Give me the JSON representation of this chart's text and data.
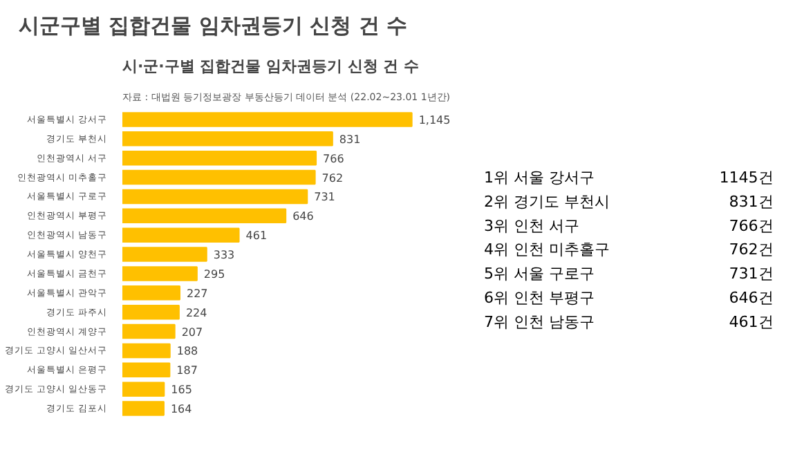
{
  "chart_data": [
    {
      "type": "bar",
      "orientation": "horizontal",
      "title": "시군구별 집합건물 임차권등기 신청 건 수",
      "subtitle": "시·군·구별 집합건물 임차권등기 신청 건 수",
      "annotations": [
        "자료 : 대법원 등기정보광장 부동산등기 데이터 분석 (22.02~23.01 1년간)"
      ],
      "categories": [
        "서울특별시 강서구",
        "경기도 부천시",
        "인천광역시 서구",
        "인천광역시 미추홀구",
        "서울특별시 구로구",
        "인천광역시 부평구",
        "인천광역시 남동구",
        "서울특별시 양천구",
        "서울특별시 금천구",
        "서울특별시 관악구",
        "경기도 파주시",
        "인천광역시 계양구",
        "경기도 고양시 일산서구",
        "서울특별시 은평구",
        "경기도 고양시 일산동구",
        "경기도 김포시"
      ],
      "values": [
        1145,
        831,
        766,
        762,
        731,
        646,
        461,
        333,
        295,
        227,
        224,
        207,
        188,
        187,
        165,
        164
      ],
      "value_labels": [
        "1,145",
        "831",
        "766",
        "762",
        "731",
        "646",
        "461",
        "333",
        "295",
        "227",
        "224",
        "207",
        "188",
        "187",
        "165",
        "164"
      ],
      "color": "#ffc000",
      "tick_labels": "y",
      "grid": false
    },
    {
      "type": "other",
      "annotations": [
        "1위 서울 강서구",
        "1145건",
        "2위 경기도 부천시",
        "831건",
        "3위 인천 서구",
        "766건",
        "4위 인천 미추홀구",
        "762건",
        "5위 서울 구로구",
        "731건",
        "6위 인천 부평구",
        "646건",
        "7위 인천 남동구",
        "461건"
      ]
    }
  ]
}
